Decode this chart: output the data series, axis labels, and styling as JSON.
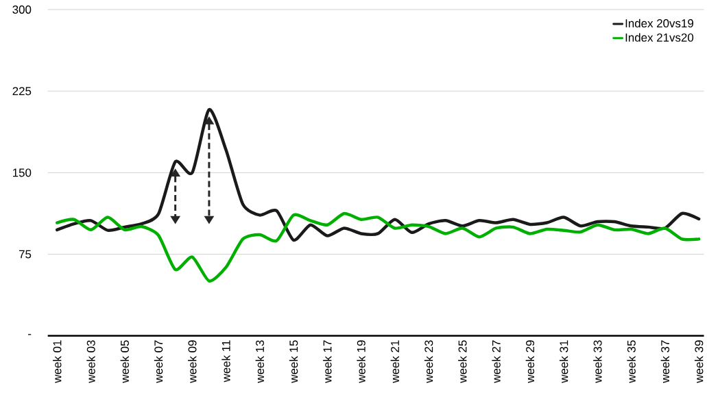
{
  "chart_data": {
    "type": "line",
    "categories": [
      "week 01",
      null,
      "week 03",
      null,
      "week 05",
      null,
      "week 07",
      null,
      "week 09",
      null,
      "week 11",
      null,
      "week 13",
      null,
      "week 15",
      null,
      "week 17",
      null,
      "week 19",
      null,
      "week 21",
      null,
      "week 23",
      null,
      "week 25",
      null,
      "week 27",
      null,
      "week 29",
      null,
      "week 31",
      null,
      "week 33",
      null,
      "week 35",
      null,
      "week 37",
      null,
      "week 39"
    ],
    "series": [
      {
        "name": "Index 20vs19",
        "color": "#1a1a1a",
        "values": [
          97.5,
          103,
          106,
          97,
          100,
          103,
          112,
          160,
          150,
          208,
          171,
          121,
          111,
          115,
          88,
          102,
          92,
          99,
          94,
          94,
          107,
          95,
          103,
          106,
          101,
          106,
          104,
          107,
          102.5,
          104,
          109,
          101,
          105,
          105,
          101,
          100,
          99,
          112.5,
          107.5
        ]
      },
      {
        "name": "Index 21vs20",
        "color": "#00b000",
        "values": [
          104,
          107,
          97.5,
          109,
          97.5,
          100.5,
          92.5,
          61,
          72.5,
          50.5,
          63,
          89,
          93,
          87.5,
          111,
          106,
          102,
          112.5,
          107,
          109,
          99,
          102,
          100.5,
          94,
          99,
          91,
          99,
          100,
          94,
          98,
          97,
          95.5,
          102,
          97.5,
          98,
          94,
          99,
          89,
          89
        ]
      }
    ],
    "ylim": [
      0,
      300
    ],
    "yticks": [
      {
        "value": 0,
        "label": "-"
      },
      75,
      150,
      225,
      300
    ],
    "grid": "y",
    "legend": "top right"
  }
}
